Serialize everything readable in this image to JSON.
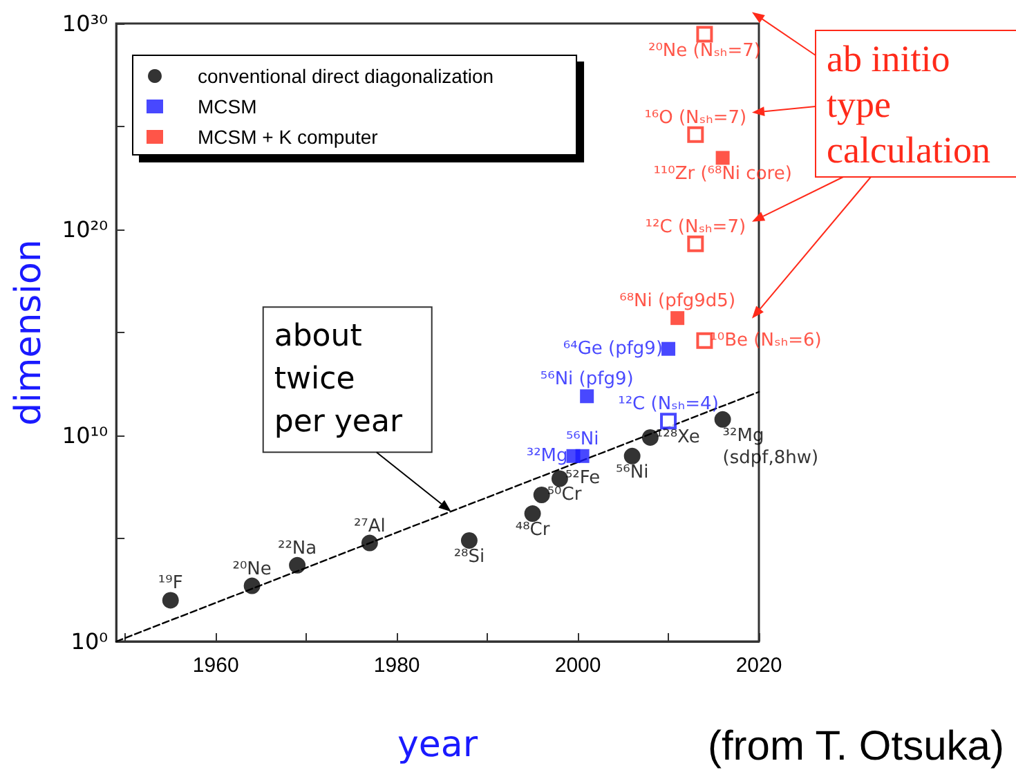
{
  "chart_data": {
    "type": "scatter",
    "xlabel": "year",
    "ylabel": "dimension",
    "xlim": [
      1949,
      2020
    ],
    "xticks": [
      {
        "value": 1950,
        "label": null
      },
      1960,
      {
        "value": 1970,
        "label": null
      },
      1980,
      {
        "value": 1990,
        "label": null
      },
      2000,
      {
        "value": 2010,
        "label": null
      },
      2020
    ],
    "ylim": [
      1,
      1e+30
    ],
    "yticks": [
      {
        "value": 1,
        "label": "10⁰"
      },
      {
        "value": 100000.0,
        "label": null
      },
      {
        "value": 10000000000.0,
        "label": "10¹⁰"
      },
      {
        "value": 1000000000000000.0,
        "label": null
      },
      {
        "value": 1e+20,
        "label": "10²⁰"
      },
      {
        "value": 1e+25,
        "label": null
      },
      {
        "value": 1e+30,
        "label": "10³⁰"
      }
    ],
    "log": "y",
    "grid": false,
    "legend": "top left",
    "series": [
      {
        "name": "conventional direct diagonalization",
        "color": "#000000",
        "marker": "circle",
        "x": [
          1955,
          1964,
          1969,
          1977,
          1988,
          1995,
          1996,
          1998,
          2006,
          2008,
          2016
        ],
        "values": [
          100.0,
          500.0,
          5000.0,
          60000.0,
          80000.0,
          1600000.0,
          13000000.0,
          80000000.0,
          1000000000.0,
          8000000000.0,
          60000000000.0
        ]
      },
      {
        "name": "MCSM",
        "color": "#1a1aff",
        "marker": "square",
        "x": [
          1999.5,
          2000.5,
          2001,
          2010
        ],
        "values": [
          1000000000.0,
          1000000000.0,
          800000000000.0,
          160000000000000.0
        ]
      },
      {
        "color": "#1a1aff",
        "marker": "square-open",
        "x": [
          2010
        ],
        "values": [
          50000000000.0
        ]
      },
      {
        "name": "MCSM + K computer",
        "color": "#ff2a1a",
        "marker": "square",
        "x": [
          2011,
          2016
        ],
        "values": [
          5000000000000000.0,
          3e+23
        ]
      },
      {
        "color": "#ff2a1a",
        "marker": "square-open",
        "x": [
          2014,
          2013,
          2013,
          2014
        ],
        "values": [
          3e+29,
          4e+24,
          2e+19,
          400000000000000.0
        ]
      },
      {
        "type": "line",
        "color": "#000000",
        "line_style": "dashed",
        "marker": "none",
        "x": [
          1949,
          2020
        ],
        "values": [
          1,
          1300000000000.0
        ]
      }
    ],
    "annotations": [
      {
        "text": "¹⁹F",
        "x": 1955,
        "y": 100.0
      },
      {
        "text": "²⁰Ne",
        "x": 1964,
        "y": 500.0
      },
      {
        "text": "²²Na",
        "x": 1969,
        "y": 5000.0
      },
      {
        "text": "²⁷Al",
        "x": 1977,
        "y": 60000.0
      },
      {
        "text": "²⁸Si",
        "x": 1988,
        "y": 80000.0
      },
      {
        "text": "⁴⁸Cr",
        "x": 1995,
        "y": 1600000.0
      },
      {
        "text": "⁵⁰Cr",
        "x": 1996,
        "y": 13000000.0
      },
      {
        "text": "⁵²Fe",
        "x": 1998,
        "y": 80000000.0
      },
      {
        "text": "⁵⁶Ni",
        "x": 2006,
        "y": 1000000000.0
      },
      {
        "text": "¹²⁸Xe",
        "x": 2008,
        "y": 8000000000.0
      },
      {
        "text": "³²Mg\n(sdpf,8hw)",
        "x": 2016,
        "y": 60000000000.0
      },
      {
        "text": "³²Mg",
        "x": 1999.5,
        "y": 1000000000.0
      },
      {
        "text": "⁵⁶Ni",
        "x": 2000.5,
        "y": 1000000000.0
      },
      {
        "text": "⁵⁶Ni (pfg9)",
        "x": 2001,
        "y": 800000000000.0
      },
      {
        "text": "⁶⁴Ge (pfg9)",
        "x": 2010,
        "y": 160000000000000.0
      },
      {
        "text": "¹²C (Nₛₕ=4)",
        "x": 2010,
        "y": 50000000000.0
      },
      {
        "text": "⁶⁸Ni (pfg9d5)",
        "x": 2011,
        "y": 5000000000000000.0
      },
      {
        "text": "¹¹⁰Zr (⁶⁸Ni core)",
        "x": 2016,
        "y": 3e+23
      },
      {
        "text": "²⁰Ne (Nₛₕ=7)",
        "x": 2014,
        "y": 3e+29
      },
      {
        "text": "¹⁶O (Nₛₕ=7)",
        "x": 2013,
        "y": 4e+24
      },
      {
        "text": "¹²C (Nₛₕ=7)",
        "x": 2013,
        "y": 2e+19
      },
      {
        "text": "¹⁰Be (Nₛₕ=6)",
        "x": 2014,
        "y": 400000000000000.0
      },
      {
        "text": "about\ntwice\nper year",
        "x": 1986,
        "y": 2000000.0
      },
      "ab initio\ntype\ncalculation",
      "(from T. Otsuka)"
    ]
  }
}
